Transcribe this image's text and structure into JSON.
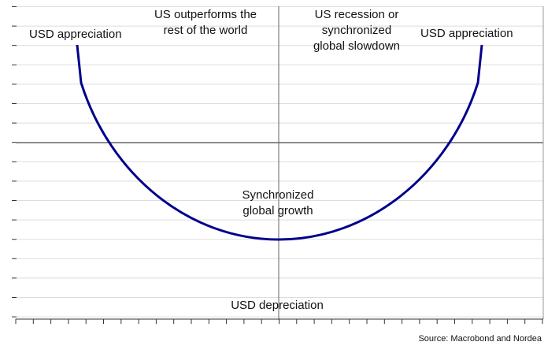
{
  "labels": {
    "left_appreciation": "USD appreciation",
    "us_outperforms": [
      "US outperforms the",
      "rest of the world"
    ],
    "us_recession": [
      "US recession or",
      "synchronized",
      "global slowdown"
    ],
    "right_appreciation": "USD appreciation",
    "synchronized_growth": [
      "Synchronized",
      "global growth"
    ],
    "depreciation": "USD depreciation"
  },
  "source": "Source: Macrobond and Nordea"
}
